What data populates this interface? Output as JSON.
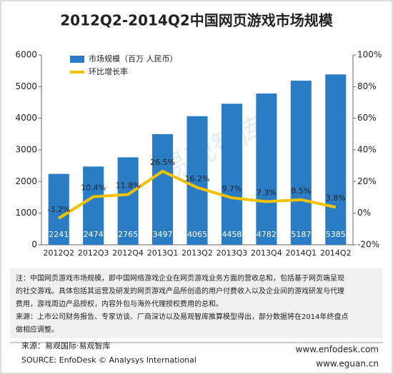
{
  "chart_data": {
    "type": "bar",
    "title": "2012Q2-2014Q2中国网页游戏市场规模",
    "categories": [
      "2012Q2",
      "2012Q3",
      "2012Q4",
      "2013Q1",
      "2013Q2",
      "2013Q3",
      "2013Q4",
      "2014Q1",
      "2014Q2"
    ],
    "series": [
      {
        "name": "市场规模（百万 人民币）",
        "type": "bar",
        "color": "#2a7cc4",
        "values": [
          2241,
          2474,
          2765,
          3497,
          4065,
          4458,
          4782,
          5187,
          5385
        ]
      },
      {
        "name": "环比增长率",
        "type": "line",
        "axis": "y2",
        "color": "#f2c200",
        "values": [
          -3.2,
          10.4,
          11.8,
          26.5,
          16.2,
          9.7,
          7.3,
          8.5,
          3.8
        ],
        "value_labels": [
          "-3.2%",
          "10.4%",
          "11.8%",
          "26.5%",
          "16.2%",
          "9.7%",
          "7.3%",
          "8.5%",
          "3.8%"
        ]
      }
    ],
    "ylim": [
      0,
      6000
    ],
    "yticks": [
      0,
      1000,
      2000,
      3000,
      4000,
      5000,
      6000
    ],
    "y2lim": [
      -20,
      100
    ],
    "y2ticks": [
      {
        "value": -20,
        "label": "-20%"
      },
      {
        "value": 0,
        "label": "0%"
      },
      {
        "value": 20,
        "label": "20%"
      },
      {
        "value": 40,
        "label": "40%"
      },
      {
        "value": 60,
        "label": "60%"
      },
      {
        "value": 80,
        "label": "80%"
      },
      {
        "value": 100,
        "label": "100%"
      }
    ],
    "grid": false,
    "legend": "upper left",
    "watermark": "易观智库"
  },
  "notes": [
    "注：中国网页游戏市场规模，即中国网络游戏企业在网页游戏业务方面的营收总和，包括基于网页端呈现",
    "的社交游戏。具体包括其运营及研发的网页游戏产品所创造的用户付费收入以及企业间的游戏研发与代理",
    "费用，游戏周边产品授权，内容外包与海外代理授权费用的总和。",
    "来源：上市公司财务报告、专家访谈、厂商深访以及易观智库推算模型得出，部分数据将在2014年终盘点",
    "做相应调整。"
  ],
  "footer": {
    "source_cn": "来源：易观国际·易观智库",
    "source_en": "SOURCE: EnfoDesk © Analysys International",
    "site1": "www.enfodesk.com",
    "site2": "www.eguan.cn"
  }
}
